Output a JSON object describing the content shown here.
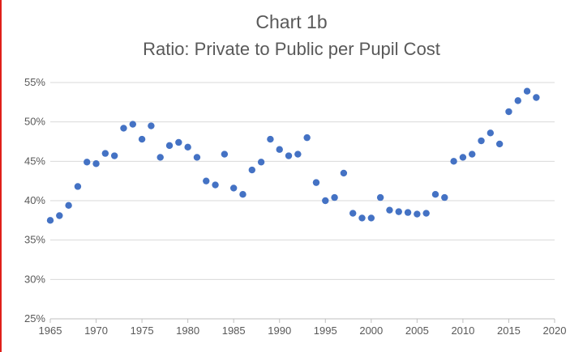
{
  "chart_data": {
    "type": "scatter",
    "title": "Chart 1b",
    "subtitle": "Ratio: Private to Public per Pupil Cost",
    "xlabel": "",
    "ylabel": "",
    "xlim": [
      1965,
      2020
    ],
    "ylim": [
      0.25,
      0.55
    ],
    "x_ticks": [
      "1965",
      "1970",
      "1975",
      "1980",
      "1985",
      "1990",
      "1995",
      "2000",
      "2005",
      "2010",
      "2015",
      "2020"
    ],
    "y_ticks": [
      "25%",
      "30%",
      "35%",
      "40%",
      "45%",
      "50%",
      "55%"
    ],
    "grid": "horizontal",
    "legend": "none",
    "marker_color": "#4472c4",
    "series": [
      {
        "x": [
          1965,
          1966,
          1967,
          1968,
          1969,
          1970,
          1971,
          1972,
          1973,
          1974,
          1975,
          1976,
          1977,
          1978,
          1979,
          1980,
          1981,
          1982,
          1983,
          1984,
          1985,
          1986,
          1987,
          1988,
          1989,
          1990,
          1991,
          1992,
          1993,
          1994,
          1995,
          1996,
          1997,
          1998,
          1999,
          2000,
          2001,
          2002,
          2003,
          2004,
          2005,
          2006,
          2007,
          2008,
          2009,
          2010,
          2011,
          2012,
          2013,
          2014,
          2015,
          2016,
          2017,
          2018
        ],
        "y": [
          0.375,
          0.381,
          0.394,
          0.418,
          0.449,
          0.447,
          0.46,
          0.457,
          0.492,
          0.497,
          0.478,
          0.495,
          0.455,
          0.47,
          0.474,
          0.468,
          0.455,
          0.425,
          0.42,
          0.459,
          0.416,
          0.408,
          0.439,
          0.449,
          0.478,
          0.465,
          0.457,
          0.459,
          0.48,
          0.423,
          0.4,
          0.404,
          0.435,
          0.384,
          0.378,
          0.378,
          0.404,
          0.388,
          0.386,
          0.385,
          0.383,
          0.384,
          0.408,
          0.404,
          0.45,
          0.455,
          0.459,
          0.476,
          0.486,
          0.472,
          0.513,
          0.527,
          0.539,
          0.531
        ]
      }
    ]
  }
}
